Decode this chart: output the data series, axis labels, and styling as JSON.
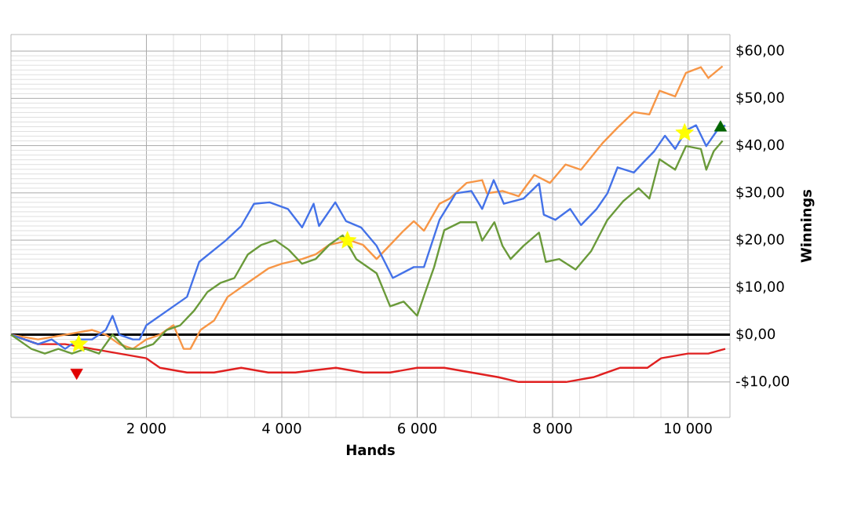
{
  "chart_data": {
    "type": "line",
    "xlabel": "Hands",
    "ylabel": "Winnings",
    "xlim": [
      0,
      10620
    ],
    "ylim": [
      -17.5,
      63.5
    ],
    "xticks": [
      {
        "value": 2000,
        "label": "2 000"
      },
      {
        "value": 4000,
        "label": "4 000"
      },
      {
        "value": 6000,
        "label": "6 000"
      },
      {
        "value": 8000,
        "label": "8 000"
      },
      {
        "value": 10000,
        "label": "10 000"
      }
    ],
    "yticks": [
      {
        "value": -10,
        "label": "-$10,00"
      },
      {
        "value": 0,
        "label": "$0,00"
      },
      {
        "value": 10,
        "label": "$10,00"
      },
      {
        "value": 20,
        "label": "$20,00"
      },
      {
        "value": 30,
        "label": "$30,00"
      },
      {
        "value": 40,
        "label": "$40,00"
      },
      {
        "value": 50,
        "label": "$50,00"
      },
      {
        "value": 60,
        "label": "$60,00"
      }
    ],
    "grid": true,
    "ref_lines": [
      {
        "axis": "y",
        "value": 0,
        "color": "#000000"
      }
    ],
    "series": [
      {
        "color": "#e02020",
        "x": [
          0,
          400,
          800,
          1200,
          1600,
          2000,
          2200,
          2600,
          3000,
          3400,
          3800,
          4200,
          4800,
          5200,
          5600,
          6000,
          6400,
          6800,
          7200,
          7500,
          7800,
          8200,
          8600,
          9000,
          9400,
          9600,
          10000,
          10300,
          10550
        ],
        "values": [
          0,
          -2,
          -2,
          -3,
          -4,
          -5,
          -7,
          -8,
          -8,
          -7,
          -8,
          -8,
          -7,
          -8,
          -8,
          -7,
          -7,
          -8,
          -9,
          -10,
          -10,
          -10,
          -9,
          -7,
          -7,
          -5,
          -4,
          -4,
          -3
        ]
      },
      {
        "color": "#f79646",
        "x": [
          0,
          400,
          800,
          1200,
          1400,
          1600,
          1800,
          2000,
          2200,
          2400,
          2550,
          2650,
          2800,
          3000,
          3200,
          3400,
          3600,
          3800,
          4000,
          4300,
          4500,
          4700,
          5000,
          5200,
          5400,
          5600,
          5800,
          5950,
          6100,
          6330,
          6480,
          6730,
          6960,
          7030,
          7260,
          7500,
          7730,
          7960,
          8190,
          8420,
          8730,
          8960,
          9200,
          9430,
          9580,
          9810,
          9970,
          10190,
          10300,
          10510
        ],
        "values": [
          0,
          -1,
          0,
          1,
          0,
          -2,
          -3,
          -1,
          0,
          2,
          -3,
          -3,
          1,
          3,
          8,
          10,
          12,
          14,
          15,
          16,
          17,
          19,
          20,
          19,
          16,
          19,
          22,
          24,
          22,
          27.7,
          28.8,
          32.1,
          32.7,
          29.9,
          30.4,
          29.3,
          33.8,
          32.1,
          36,
          34.9,
          40.4,
          43.8,
          47.1,
          46.6,
          51.6,
          50.4,
          55.4,
          56.6,
          54.3,
          56.8
        ]
      },
      {
        "color": "#4472e8",
        "x": [
          0,
          200,
          400,
          600,
          800,
          1000,
          1200,
          1400,
          1500,
          1600,
          1800,
          1900,
          2000,
          2200,
          2400,
          2600,
          2780,
          3170,
          3400,
          3590,
          3820,
          4090,
          4300,
          4470,
          4550,
          4790,
          4950,
          5170,
          5400,
          5640,
          5950,
          6100,
          6330,
          6570,
          6800,
          6960,
          7130,
          7280,
          7570,
          7800,
          7870,
          8040,
          8260,
          8420,
          8650,
          8810,
          8960,
          9200,
          9350,
          9500,
          9660,
          9810,
          9970,
          10120,
          10270,
          10430,
          10550
        ],
        "values": [
          0,
          -1,
          -2,
          -1,
          -3,
          -1,
          -1,
          1,
          4,
          0,
          -1,
          -1,
          2,
          4,
          6,
          8,
          15.4,
          19.9,
          23,
          27.7,
          28,
          26.6,
          22.7,
          27.7,
          23,
          28,
          24,
          22.7,
          18.8,
          12,
          14.3,
          14.3,
          24.3,
          29.9,
          30.4,
          26.6,
          32.7,
          27.7,
          28.8,
          32,
          25.4,
          24.3,
          26.6,
          23.2,
          26.6,
          29.9,
          35.4,
          34.3,
          36.6,
          38.8,
          42.1,
          39.3,
          43.2,
          44.3,
          39.9,
          43.2,
          44.3
        ]
      },
      {
        "color": "#6a9a3a",
        "x": [
          0,
          300,
          500,
          700,
          900,
          1100,
          1300,
          1500,
          1700,
          1900,
          2100,
          2300,
          2500,
          2700,
          2900,
          3100,
          3300,
          3500,
          3700,
          3900,
          4100,
          4300,
          4500,
          4700,
          4900,
          5100,
          5400,
          5600,
          5800,
          6000,
          6100,
          6250,
          6400,
          6640,
          6870,
          6960,
          7140,
          7260,
          7380,
          7570,
          7800,
          7900,
          8100,
          8340,
          8570,
          8810,
          9040,
          9270,
          9430,
          9580,
          9810,
          9970,
          10190,
          10270,
          10380,
          10510
        ],
        "values": [
          0,
          -3,
          -4,
          -3,
          -4,
          -3,
          -4,
          0,
          -3,
          -3,
          -2,
          1,
          2,
          5,
          9,
          11,
          12,
          17,
          19,
          20,
          18,
          15,
          16,
          19,
          21,
          16,
          13,
          6,
          7,
          4,
          8.2,
          14.3,
          22.1,
          23.8,
          23.8,
          19.9,
          23.8,
          18.8,
          16,
          18.8,
          21.6,
          15.4,
          16,
          13.8,
          17.7,
          24.3,
          28.2,
          31,
          28.8,
          37.1,
          34.9,
          39.9,
          39.3,
          34.9,
          38.8,
          41
        ]
      },
      {
        "type": "scatter",
        "marker": "star",
        "color": "#ffff00",
        "x": [
          1000,
          4970,
          9950
        ],
        "values": [
          -2,
          19.9,
          42.7
        ]
      },
      {
        "type": "scatter",
        "marker": "triangle-down",
        "color": "#e00000",
        "x": [
          970
        ],
        "values": [
          -8
        ]
      },
      {
        "type": "scatter",
        "marker": "triangle",
        "color": "#006400",
        "x": [
          10480
        ],
        "values": [
          43.8
        ]
      }
    ]
  }
}
